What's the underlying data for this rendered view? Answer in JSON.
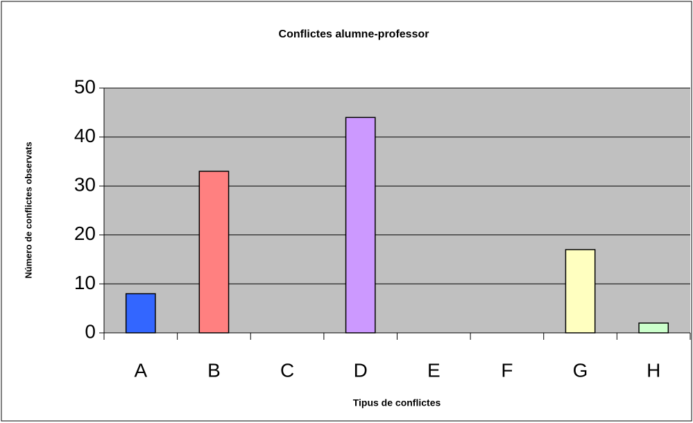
{
  "chart_data": {
    "type": "bar",
    "title": "Conflictes alumne-professor",
    "x_label": "Tipus de conflictes",
    "y_label": "Número de conflictes observats",
    "categories": [
      "A",
      "B",
      "C",
      "D",
      "E",
      "F",
      "G",
      "H"
    ],
    "values": [
      8,
      33,
      0,
      44,
      0,
      0,
      17,
      2
    ],
    "colors": [
      "#3366ff",
      "#ff8080",
      null,
      "#cc99ff",
      null,
      null,
      "#ffffc0",
      "#ccffcc"
    ],
    "ylim": [
      0,
      50
    ],
    "yticks": [
      0,
      10,
      20,
      30,
      40,
      50
    ],
    "grid": true
  }
}
